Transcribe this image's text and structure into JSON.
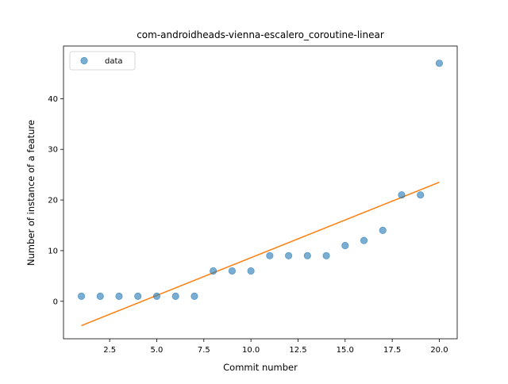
{
  "chart_data": {
    "type": "scatter",
    "title": "com-androidheads-vienna-escalero_coroutine-linear",
    "xlabel": "Commit number",
    "ylabel": "Number of instance of a feature",
    "xlim": [
      0.05,
      20.95
    ],
    "ylim": [
      -7.4,
      50.4
    ],
    "xticks": [
      "2.5",
      "5.0",
      "7.5",
      "10.0",
      "12.5",
      "15.0",
      "17.5",
      "20.0"
    ],
    "xtick_values": [
      2.5,
      5.0,
      7.5,
      10.0,
      12.5,
      15.0,
      17.5,
      20.0
    ],
    "yticks": [
      "0",
      "10",
      "20",
      "30",
      "40"
    ],
    "ytick_values": [
      0,
      10,
      20,
      30,
      40
    ],
    "grid": false,
    "legend_position": "top-left",
    "series": [
      {
        "name": "data",
        "kind": "scatter",
        "color": "#1f77b4",
        "x": [
          1,
          2,
          3,
          4,
          5,
          6,
          7,
          8,
          9,
          10,
          11,
          12,
          13,
          14,
          15,
          16,
          17,
          18,
          19,
          20
        ],
        "y": [
          1,
          1,
          1,
          1,
          1,
          1,
          1,
          6,
          6,
          6,
          9,
          9,
          9,
          9,
          11,
          12,
          14,
          21,
          21,
          47
        ]
      },
      {
        "kind": "line",
        "color": "#ff7f0e",
        "x": [
          1,
          20
        ],
        "y": [
          -4.8,
          23.5
        ]
      }
    ]
  }
}
